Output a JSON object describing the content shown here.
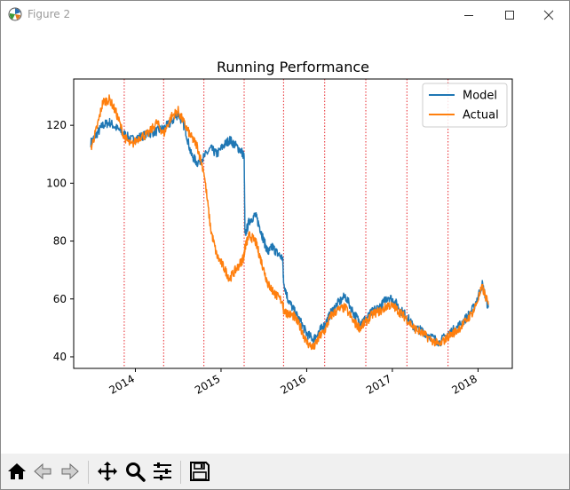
{
  "window": {
    "title": "Figure 2",
    "controls": [
      "minimize-icon",
      "maximize-icon",
      "close-icon"
    ]
  },
  "chart_data": {
    "type": "line",
    "title": "Running Performance",
    "xlabel": "",
    "ylabel": "",
    "xlim": [
      2013.28,
      2018.4
    ],
    "ylim": [
      36,
      136
    ],
    "xticks": [
      2014,
      2015,
      2016,
      2017,
      2018
    ],
    "xtick_labels": [
      "2014",
      "2015",
      "2016",
      "2017",
      "2018"
    ],
    "yticks": [
      40,
      60,
      80,
      100,
      120
    ],
    "ytick_labels": [
      "40",
      "60",
      "80",
      "100",
      "120"
    ],
    "legend": {
      "position": "top-right"
    },
    "vlines": {
      "style": "dotted",
      "color": "#e8262b",
      "x": [
        2013.87,
        2014.33,
        2014.8,
        2015.27,
        2015.73,
        2016.21,
        2016.69,
        2017.17,
        2017.65
      ]
    },
    "series": [
      {
        "name": "Model",
        "color": "#1f77b4",
        "x": [
          2013.48,
          2013.55,
          2013.62,
          2013.7,
          2013.78,
          2013.87,
          2013.95,
          2014.05,
          2014.15,
          2014.25,
          2014.33,
          2014.42,
          2014.5,
          2014.58,
          2014.65,
          2014.72,
          2014.8,
          2014.88,
          2014.95,
          2015.03,
          2015.1,
          2015.17,
          2015.24,
          2015.27,
          2015.28,
          2015.33,
          2015.4,
          2015.45,
          2015.5,
          2015.55,
          2015.6,
          2015.65,
          2015.72,
          2015.73,
          2015.78,
          2015.85,
          2015.93,
          2016.0,
          2016.08,
          2016.15,
          2016.21,
          2016.28,
          2016.35,
          2016.45,
          2016.55,
          2016.62,
          2016.69,
          2016.78,
          2016.88,
          2016.95,
          2017.03,
          2017.1,
          2017.17,
          2017.25,
          2017.35,
          2017.45,
          2017.55,
          2017.65,
          2017.75,
          2017.85,
          2017.95,
          2018.05,
          2018.12
        ],
        "y": [
          114,
          117,
          120,
          121,
          119,
          117,
          115,
          116,
          117,
          118,
          119,
          121,
          124,
          119,
          110,
          107,
          109,
          112,
          110,
          113,
          115,
          113,
          111,
          109,
          82,
          87,
          89,
          85,
          80,
          76,
          78,
          76,
          74,
          66,
          60,
          56,
          52,
          48,
          46,
          49,
          51,
          55,
          58,
          61,
          55,
          52,
          53,
          56,
          58,
          61,
          59,
          56,
          54,
          50,
          49,
          47,
          45,
          48,
          50,
          53,
          57,
          65,
          57
        ]
      },
      {
        "name": "Actual",
        "color": "#ff7f0e",
        "x": [
          2013.48,
          2013.55,
          2013.62,
          2013.7,
          2013.78,
          2013.87,
          2013.95,
          2014.05,
          2014.15,
          2014.25,
          2014.33,
          2014.42,
          2014.5,
          2014.58,
          2014.65,
          2014.72,
          2014.8,
          2014.88,
          2014.95,
          2015.03,
          2015.1,
          2015.17,
          2015.24,
          2015.27,
          2015.28,
          2015.33,
          2015.4,
          2015.45,
          2015.5,
          2015.55,
          2015.6,
          2015.65,
          2015.72,
          2015.73,
          2015.78,
          2015.85,
          2015.93,
          2016.0,
          2016.08,
          2016.15,
          2016.21,
          2016.28,
          2016.35,
          2016.45,
          2016.55,
          2016.62,
          2016.69,
          2016.78,
          2016.88,
          2016.95,
          2017.03,
          2017.1,
          2017.17,
          2017.25,
          2017.35,
          2017.45,
          2017.55,
          2017.65,
          2017.75,
          2017.85,
          2017.95,
          2018.05,
          2018.12
        ],
        "y": [
          112,
          119,
          128,
          129,
          124,
          116,
          113,
          116,
          117,
          121,
          117,
          123,
          125,
          120,
          116,
          113,
          104,
          84,
          75,
          71,
          67,
          70,
          73,
          75,
          78,
          82,
          80,
          75,
          70,
          65,
          63,
          61,
          59,
          56,
          55,
          54,
          50,
          45,
          43,
          47,
          49,
          54,
          56,
          57,
          52,
          50,
          52,
          55,
          56,
          58,
          57,
          55,
          53,
          50,
          48,
          46,
          44,
          47,
          49,
          52,
          56,
          64,
          58
        ]
      }
    ]
  },
  "toolbar": {
    "buttons": [
      "home-icon",
      "back-icon",
      "forward-icon",
      "pan-icon",
      "zoom-icon",
      "configure-subplots-icon",
      "save-icon"
    ]
  },
  "colors": {
    "model": "#1f77b4",
    "actual": "#ff7f0e",
    "vline": "#e8262b",
    "toolbar_bg": "#f0f0f0"
  }
}
